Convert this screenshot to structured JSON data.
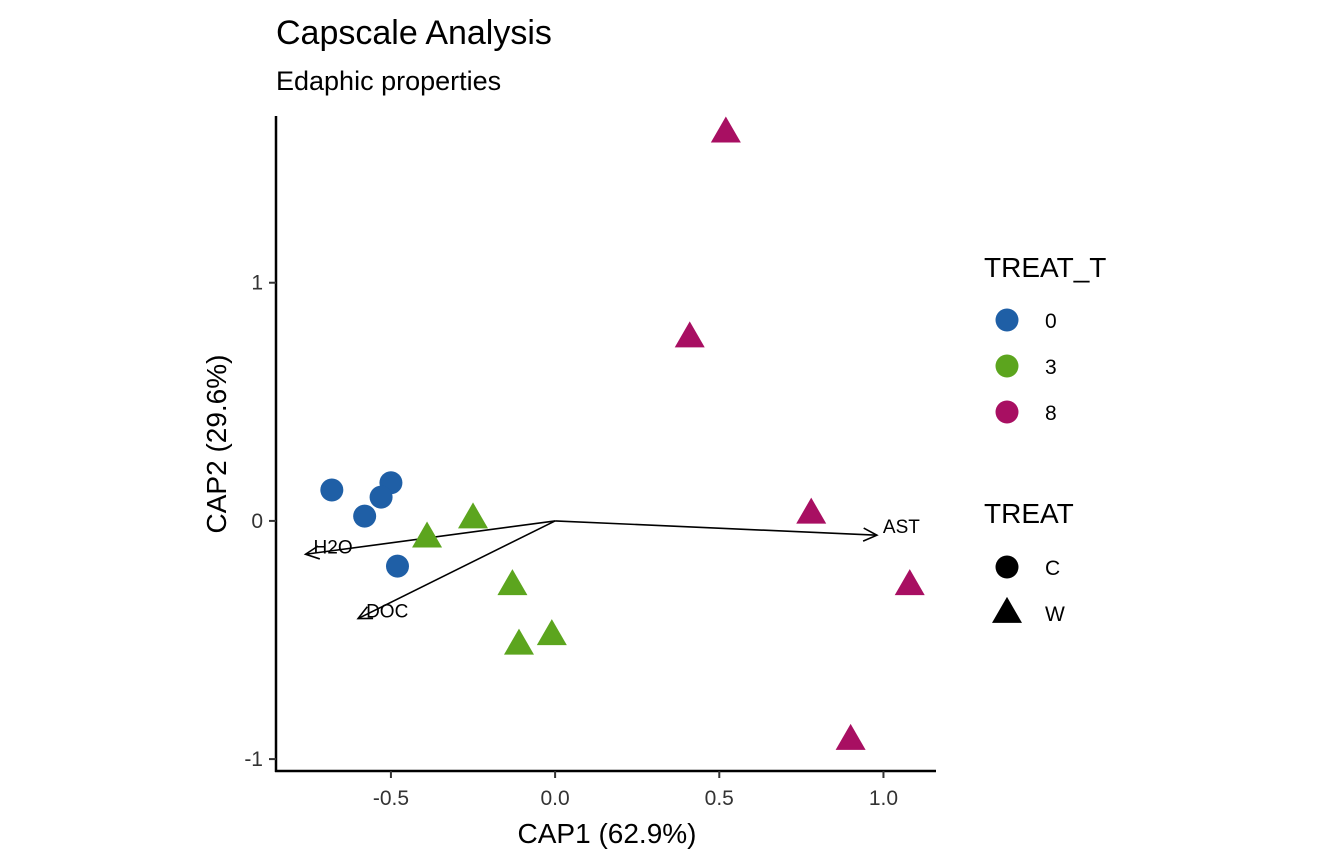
{
  "chart_data": {
    "type": "scatter",
    "title": "Capscale Analysis",
    "subtitle": "Edaphic properties",
    "xlabel": "CAP1 (62.9%)",
    "ylabel": "CAP2 (29.6%)",
    "xlim": [
      -0.85,
      1.16
    ],
    "ylim": [
      -1.05,
      1.7
    ],
    "x_ticks": [
      {
        "value": -0.5,
        "label": "-0.5"
      },
      {
        "value": 0.0,
        "label": "0.0"
      },
      {
        "value": 0.5,
        "label": "0.5"
      },
      {
        "value": 1.0,
        "label": "1.0"
      }
    ],
    "y_ticks": [
      {
        "value": -1,
        "label": "-1"
      },
      {
        "value": 0,
        "label": "0"
      },
      {
        "value": 1,
        "label": "1"
      }
    ],
    "grid": false,
    "colors": {
      "0": "#1f5fa6",
      "3": "#5ca51e",
      "8": "#a80f62"
    },
    "points": [
      {
        "x": -0.68,
        "y": 0.13,
        "treat_t": "0",
        "treat": "C"
      },
      {
        "x": -0.5,
        "y": 0.16,
        "treat_t": "0",
        "treat": "C"
      },
      {
        "x": -0.53,
        "y": 0.1,
        "treat_t": "0",
        "treat": "C"
      },
      {
        "x": -0.58,
        "y": 0.02,
        "treat_t": "0",
        "treat": "C"
      },
      {
        "x": -0.48,
        "y": -0.19,
        "treat_t": "0",
        "treat": "C"
      },
      {
        "x": -0.25,
        "y": 0.01,
        "treat_t": "3",
        "treat": "W"
      },
      {
        "x": -0.39,
        "y": -0.07,
        "treat_t": "3",
        "treat": "W"
      },
      {
        "x": -0.13,
        "y": -0.27,
        "treat_t": "3",
        "treat": "W"
      },
      {
        "x": -0.01,
        "y": -0.48,
        "treat_t": "3",
        "treat": "W"
      },
      {
        "x": -0.11,
        "y": -0.52,
        "treat_t": "3",
        "treat": "W"
      },
      {
        "x": 0.52,
        "y": 1.63,
        "treat_t": "8",
        "treat": "W"
      },
      {
        "x": 0.41,
        "y": 0.77,
        "treat_t": "8",
        "treat": "W"
      },
      {
        "x": 0.78,
        "y": 0.03,
        "treat_t": "8",
        "treat": "W"
      },
      {
        "x": 1.08,
        "y": -0.27,
        "treat_t": "8",
        "treat": "W"
      },
      {
        "x": 0.9,
        "y": -0.92,
        "treat_t": "8",
        "treat": "W"
      }
    ],
    "vectors": [
      {
        "label": "H2O",
        "x": -0.76,
        "y": -0.14
      },
      {
        "label": "DOC",
        "x": -0.6,
        "y": -0.41
      },
      {
        "label": "AST",
        "x": 0.98,
        "y": -0.06
      }
    ],
    "legends": [
      {
        "title": "TREAT_T",
        "kind": "color",
        "entries": [
          {
            "label": "0",
            "color": "#1f5fa6"
          },
          {
            "label": "3",
            "color": "#5ca51e"
          },
          {
            "label": "8",
            "color": "#a80f62"
          }
        ]
      },
      {
        "title": "TREAT",
        "kind": "shape",
        "entries": [
          {
            "label": "C",
            "shape": "circle"
          },
          {
            "label": "W",
            "shape": "triangle"
          }
        ]
      }
    ],
    "legend_position": "right"
  }
}
